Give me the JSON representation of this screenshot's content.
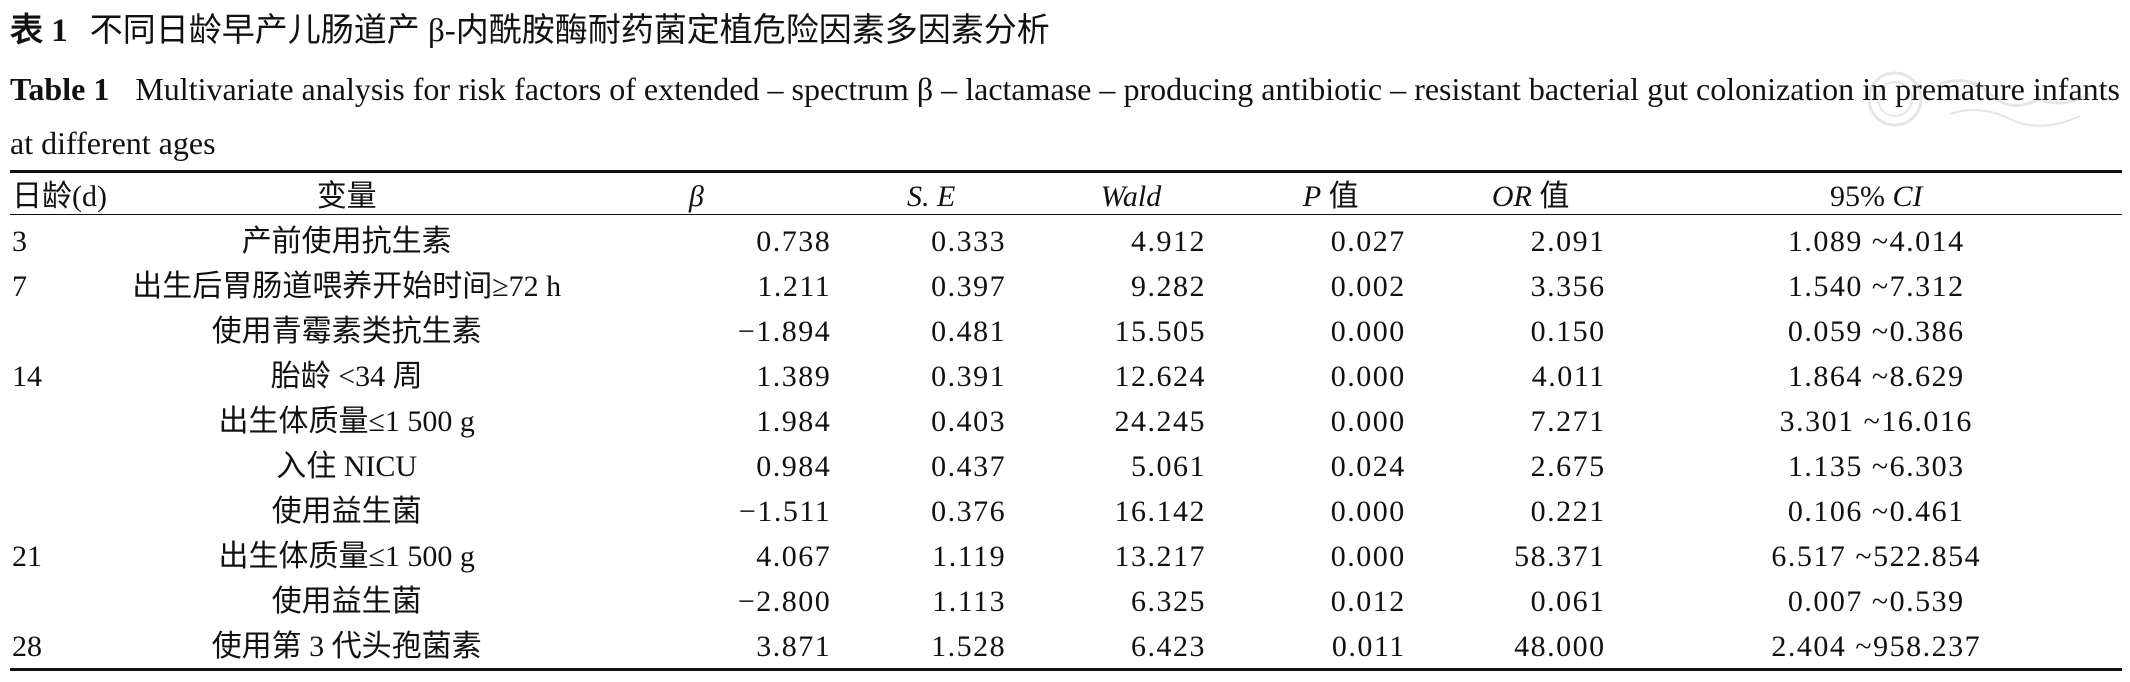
{
  "caption": {
    "cn_label": "表 1",
    "cn_title": "不同日龄早产儿肠道产 β-内酰胺酶耐药菌定植危险因素多因素分析",
    "en_label": "Table 1",
    "en_title": "Multivariate analysis for risk factors of extended – spectrum β – lactamase – producing antibiotic – resistant bacterial gut colonization in premature infants at different ages"
  },
  "table": {
    "headers": {
      "age": "日龄(d)",
      "variable": "变量",
      "beta": "β",
      "se": "S. E",
      "wald": "Wald",
      "p_italic": "P",
      "p_suffix": " 值",
      "or_italic": "OR",
      "or_suffix": " 值",
      "ci_prefix": "95% ",
      "ci_italic": "CI"
    },
    "rows": [
      {
        "age": "3",
        "variable": "产前使用抗生素",
        "beta": "0.738",
        "se": "0.333",
        "wald": "4.912",
        "p": "0.027",
        "or": "2.091",
        "ci": "1.089 ~4.014"
      },
      {
        "age": "7",
        "variable": "出生后胃肠道喂养开始时间≥72 h",
        "beta": "1.211",
        "se": "0.397",
        "wald": "9.282",
        "p": "0.002",
        "or": "3.356",
        "ci": "1.540 ~7.312"
      },
      {
        "age": "",
        "variable": "使用青霉素类抗生素",
        "beta": "−1.894",
        "se": "0.481",
        "wald": "15.505",
        "p": "0.000",
        "or": "0.150",
        "ci": "0.059 ~0.386"
      },
      {
        "age": "14",
        "variable": "胎龄 <34 周",
        "beta": "1.389",
        "se": "0.391",
        "wald": "12.624",
        "p": "0.000",
        "or": "4.011",
        "ci": "1.864 ~8.629"
      },
      {
        "age": "",
        "variable": "出生体质量≤1 500 g",
        "beta": "1.984",
        "se": "0.403",
        "wald": "24.245",
        "p": "0.000",
        "or": "7.271",
        "ci": "3.301 ~16.016"
      },
      {
        "age": "",
        "variable": "入住 NICU",
        "beta": "0.984",
        "se": "0.437",
        "wald": "5.061",
        "p": "0.024",
        "or": "2.675",
        "ci": "1.135 ~6.303"
      },
      {
        "age": "",
        "variable": "使用益生菌",
        "beta": "−1.511",
        "se": "0.376",
        "wald": "16.142",
        "p": "0.000",
        "or": "0.221",
        "ci": "0.106 ~0.461"
      },
      {
        "age": "21",
        "variable": "出生体质量≤1 500 g",
        "beta": "4.067",
        "se": "1.119",
        "wald": "13.217",
        "p": "0.000",
        "or": "58.371",
        "ci": "6.517 ~522.854"
      },
      {
        "age": "",
        "variable": "使用益生菌",
        "beta": "−2.800",
        "se": "1.113",
        "wald": "6.325",
        "p": "0.012",
        "or": "0.061",
        "ci": "0.007 ~0.539"
      },
      {
        "age": "28",
        "variable": "使用第 3 代头孢菌素",
        "beta": "3.871",
        "se": "1.528",
        "wald": "6.423",
        "p": "0.011",
        "or": "48.000",
        "ci": "2.404 ~958.237"
      }
    ]
  }
}
